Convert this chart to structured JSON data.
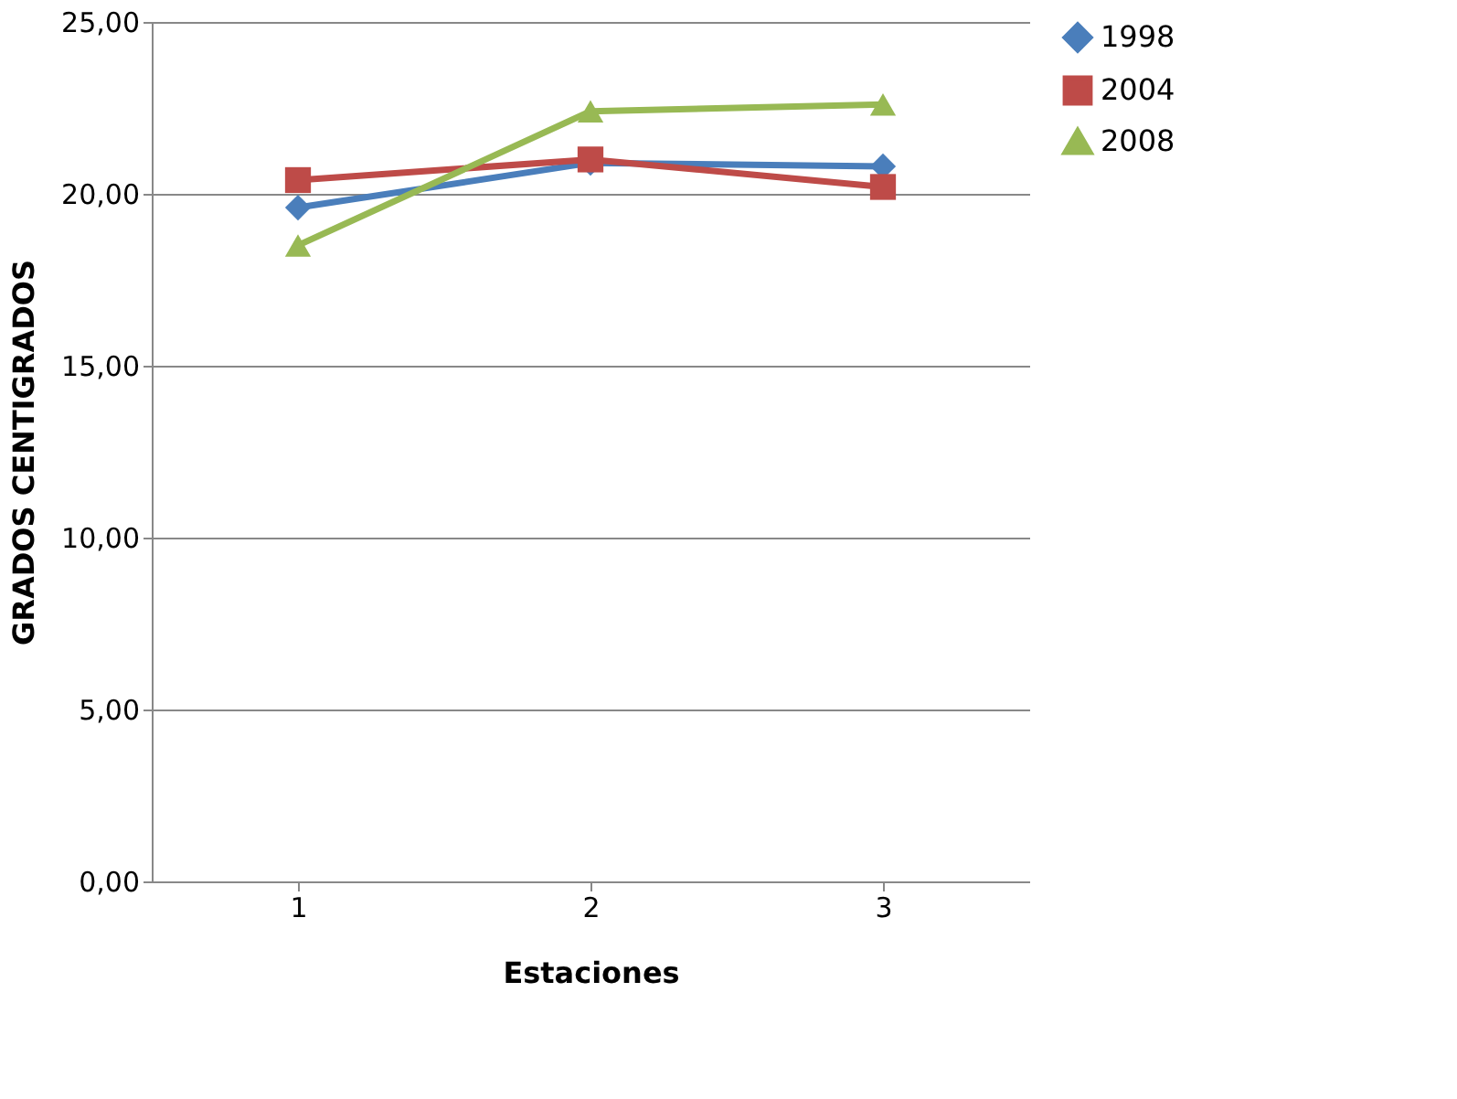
{
  "chart_data": {
    "type": "line",
    "xlabel": "Estaciones",
    "ylabel": "GRADOS CENTIGRADOS",
    "categories": [
      "1",
      "2",
      "3"
    ],
    "series": [
      {
        "name": "1998",
        "color": "#4a7ebb",
        "marker": "diamond",
        "values": [
          19.6,
          20.9,
          20.8
        ]
      },
      {
        "name": "2004",
        "color": "#be4b48",
        "marker": "square",
        "values": [
          20.4,
          21.0,
          20.2
        ]
      },
      {
        "name": "2008",
        "color": "#98b954",
        "marker": "triangle",
        "values": [
          18.5,
          22.4,
          22.6
        ]
      }
    ],
    "ylim": [
      0,
      25
    ],
    "yticks": [
      {
        "value": 0,
        "label": "0,00"
      },
      {
        "value": 5,
        "label": "5,00"
      },
      {
        "value": 10,
        "label": "10,00"
      },
      {
        "value": 15,
        "label": "15,00"
      },
      {
        "value": 20,
        "label": "20,00"
      },
      {
        "value": 25,
        "label": "25,00"
      }
    ],
    "grid": "y",
    "legend": "right",
    "line_style": "solid"
  }
}
